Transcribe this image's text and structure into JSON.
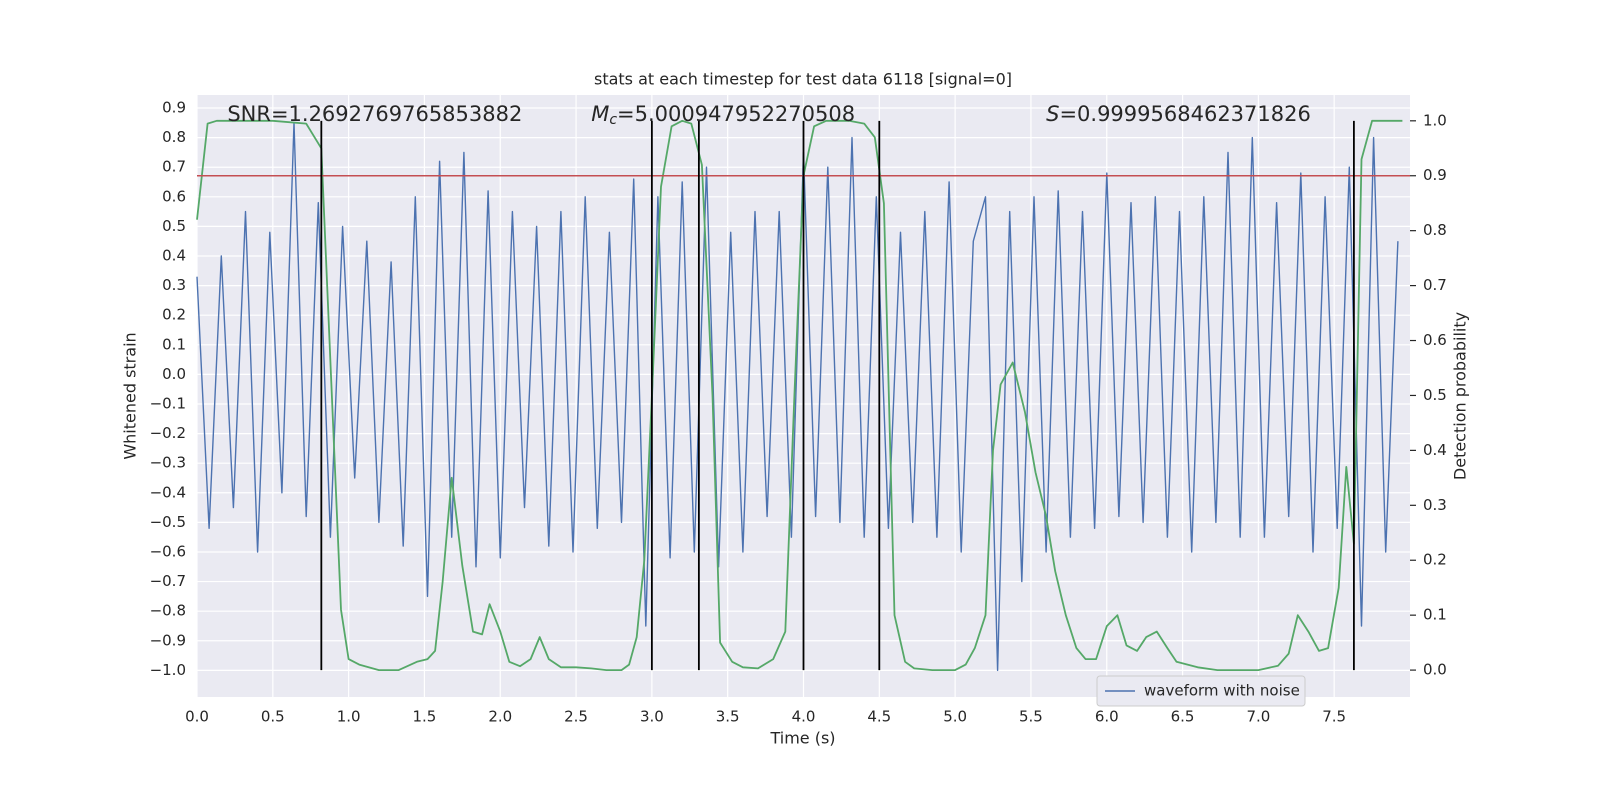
{
  "chart_data": {
    "type": "line",
    "title": "stats at each timestep for test data 6118 [signal=0]",
    "xlabel": "Time (s)",
    "ylabel": "Whitened strain",
    "y2label": "Detection probability",
    "annotations": [
      {
        "text": "SNR=1.2692769765853882",
        "x": 0.2
      },
      {
        "symbol": "M",
        "subscript": "c",
        "text": "=5.000947952270508",
        "x": 2.6
      },
      {
        "symbol": "S",
        "text": "=0.9999568462371826",
        "x": 5.6
      }
    ],
    "xlim": [
      0,
      8
    ],
    "xticks": [
      {
        "value": 0,
        "label": "0.0"
      },
      {
        "value": 0.5,
        "label": "0.5"
      },
      {
        "value": 1,
        "label": "1.0"
      },
      {
        "value": 1.5,
        "label": "1.5"
      },
      {
        "value": 2,
        "label": "2.0"
      },
      {
        "value": 2.5,
        "label": "2.5"
      },
      {
        "value": 3,
        "label": "3.0"
      },
      {
        "value": 3.5,
        "label": "3.5"
      },
      {
        "value": 4,
        "label": "4.0"
      },
      {
        "value": 4.5,
        "label": "4.5"
      },
      {
        "value": 5,
        "label": "5.0"
      },
      {
        "value": 5.5,
        "label": "5.5"
      },
      {
        "value": 6,
        "label": "6.0"
      },
      {
        "value": 6.5,
        "label": "6.5"
      },
      {
        "value": 7,
        "label": "7.0"
      },
      {
        "value": 7.5,
        "label": "7.5"
      }
    ],
    "ylim": [
      -1.09,
      0.944
    ],
    "yticks": [
      {
        "value": -1.0,
        "label": "−1.0"
      },
      {
        "value": -0.9,
        "label": "−0.9"
      },
      {
        "value": -0.8,
        "label": "−0.8"
      },
      {
        "value": -0.7,
        "label": "−0.7"
      },
      {
        "value": -0.6,
        "label": "−0.6"
      },
      {
        "value": -0.5,
        "label": "−0.5"
      },
      {
        "value": -0.4,
        "label": "−0.4"
      },
      {
        "value": -0.3,
        "label": "−0.3"
      },
      {
        "value": -0.2,
        "label": "−0.2"
      },
      {
        "value": -0.1,
        "label": "−0.1"
      },
      {
        "value": 0,
        "label": "0.0"
      },
      {
        "value": 0.1,
        "label": "0.1"
      },
      {
        "value": 0.2,
        "label": "0.2"
      },
      {
        "value": 0.3,
        "label": "0.3"
      },
      {
        "value": 0.4,
        "label": "0.4"
      },
      {
        "value": 0.5,
        "label": "0.5"
      },
      {
        "value": 0.6,
        "label": "0.6"
      },
      {
        "value": 0.7,
        "label": "0.7"
      },
      {
        "value": 0.8,
        "label": "0.8"
      },
      {
        "value": 0.9,
        "label": "0.9"
      }
    ],
    "y2lim": [
      -0.049,
      1.047
    ],
    "y2ticks": [
      {
        "value": 0,
        "label": "0.0"
      },
      {
        "value": 0.1,
        "label": "0.1"
      },
      {
        "value": 0.2,
        "label": "0.2"
      },
      {
        "value": 0.3,
        "label": "0.3"
      },
      {
        "value": 0.4,
        "label": "0.4"
      },
      {
        "value": 0.5,
        "label": "0.5"
      },
      {
        "value": 0.6,
        "label": "0.6"
      },
      {
        "value": 0.7,
        "label": "0.7"
      },
      {
        "value": 0.8,
        "label": "0.8"
      },
      {
        "value": 0.9,
        "label": "0.9"
      },
      {
        "value": 1,
        "label": "1.0"
      }
    ],
    "grid": true,
    "legend": "lower right",
    "series": [
      {
        "name": "waveform with noise",
        "color": "#4c72b0",
        "x": [
          0,
          0.08,
          0.16,
          0.24,
          0.32,
          0.4,
          0.48,
          0.56,
          0.64,
          0.72,
          0.8,
          0.88,
          0.96,
          1.04,
          1.12,
          1.2,
          1.28,
          1.36,
          1.44,
          1.52,
          1.6,
          1.68,
          1.76,
          1.84,
          1.92,
          2,
          2.08,
          2.16,
          2.24,
          2.32,
          2.4,
          2.48,
          2.56,
          2.64,
          2.72,
          2.8,
          2.88,
          2.96,
          3.04,
          3.12,
          3.2,
          3.28,
          3.36,
          3.44,
          3.52,
          3.6,
          3.68,
          3.76,
          3.84,
          3.92,
          4,
          4.08,
          4.16,
          4.24,
          4.32,
          4.4,
          4.48,
          4.56,
          4.64,
          4.72,
          4.8,
          4.88,
          4.96,
          5.04,
          5.12,
          5.2,
          5.28,
          5.36,
          5.44,
          5.52,
          5.6,
          5.68,
          5.76,
          5.84,
          5.92,
          6,
          6.08,
          6.16,
          6.24,
          6.32,
          6.4,
          6.48,
          6.56,
          6.64,
          6.72,
          6.8,
          6.88,
          6.96,
          7.04,
          7.12,
          7.2,
          7.28,
          7.36,
          7.44,
          7.52,
          7.6,
          7.68,
          7.76,
          7.84,
          7.92
        ],
        "values": [
          0.33,
          -0.52,
          0.4,
          -0.45,
          0.55,
          -0.6,
          0.48,
          -0.4,
          0.85,
          -0.48,
          0.58,
          -0.55,
          0.5,
          -0.35,
          0.45,
          -0.5,
          0.38,
          -0.58,
          0.6,
          -0.75,
          0.72,
          -0.55,
          0.75,
          -0.65,
          0.62,
          -0.62,
          0.55,
          -0.45,
          0.5,
          -0.58,
          0.55,
          -0.6,
          0.6,
          -0.52,
          0.48,
          -0.5,
          0.66,
          -0.85,
          0.6,
          -0.62,
          0.65,
          -0.6,
          0.7,
          -0.65,
          0.48,
          -0.6,
          0.55,
          -0.48,
          0.55,
          -0.55,
          0.75,
          -0.48,
          0.7,
          -0.5,
          0.8,
          -0.55,
          0.6,
          -0.52,
          0.48,
          -0.5,
          0.55,
          -0.55,
          0.65,
          -0.6,
          0.45,
          0.6,
          -1.0,
          0.55,
          -0.7,
          0.6,
          -0.6,
          0.62,
          -0.55,
          0.55,
          -0.52,
          0.68,
          -0.48,
          0.58,
          -0.5,
          0.6,
          -0.55,
          0.55,
          -0.6,
          0.6,
          -0.5,
          0.75,
          -0.55,
          0.8,
          -0.55,
          0.58,
          -0.48,
          0.68,
          -0.6,
          0.6,
          -0.52,
          0.7,
          -0.85,
          0.8,
          -0.6,
          0.45
        ]
      },
      {
        "color": "#55a868",
        "axis": "y2",
        "x": [
          0,
          0.07,
          0.13,
          0.5,
          0.72,
          0.82,
          0.95,
          1,
          1.07,
          1.2,
          1.33,
          1.45,
          1.52,
          1.57,
          1.62,
          1.68,
          1.75,
          1.82,
          1.88,
          1.93,
          2,
          2.06,
          2.13,
          2.2,
          2.26,
          2.32,
          2.4,
          2.5,
          2.6,
          2.7,
          2.8,
          2.85,
          2.9,
          2.95,
          3,
          3.06,
          3.13,
          3.2,
          3.26,
          3.33,
          3.4,
          3.45,
          3.53,
          3.6,
          3.7,
          3.8,
          3.88,
          3.94,
          4,
          4.07,
          4.15,
          4.3,
          4.4,
          4.47,
          4.53,
          4.6,
          4.67,
          4.73,
          4.85,
          5,
          5.07,
          5.13,
          5.2,
          5.25,
          5.3,
          5.38,
          5.46,
          5.53,
          5.6,
          5.66,
          5.73,
          5.8,
          5.86,
          5.93,
          6,
          6.07,
          6.13,
          6.2,
          6.26,
          6.33,
          6.4,
          6.46,
          6.6,
          6.73,
          6.86,
          7,
          7.13,
          7.2,
          7.26,
          7.33,
          7.4,
          7.46,
          7.53,
          7.58,
          7.63,
          7.68,
          7.75,
          7.95
        ],
        "values": [
          0.82,
          0.995,
          1,
          1,
          0.995,
          0.95,
          0.11,
          0.02,
          0.01,
          0,
          0,
          0.015,
          0.02,
          0.035,
          0.16,
          0.35,
          0.19,
          0.07,
          0.065,
          0.12,
          0.07,
          0.015,
          0.007,
          0.02,
          0.06,
          0.02,
          0.005,
          0.005,
          0.003,
          0,
          0,
          0.01,
          0.06,
          0.2,
          0.5,
          0.88,
          0.99,
          1,
          0.995,
          0.92,
          0.5,
          0.05,
          0.015,
          0.005,
          0.003,
          0.02,
          0.07,
          0.5,
          0.9,
          0.99,
          1,
          1,
          0.995,
          0.97,
          0.85,
          0.1,
          0.015,
          0.003,
          0,
          0,
          0.01,
          0.04,
          0.1,
          0.4,
          0.52,
          0.56,
          0.47,
          0.36,
          0.28,
          0.18,
          0.1,
          0.04,
          0.02,
          0.02,
          0.08,
          0.1,
          0.045,
          0.035,
          0.06,
          0.07,
          0.04,
          0.015,
          0.005,
          0,
          0,
          0,
          0.008,
          0.03,
          0.1,
          0.07,
          0.035,
          0.04,
          0.15,
          0.37,
          0.23,
          0.93,
          1,
          1
        ]
      }
    ],
    "hlines": [
      {
        "y2": 0.9,
        "color": "#c44e52"
      }
    ],
    "vlines": {
      "x": [
        0.82,
        3.0,
        3.31,
        4.0,
        4.5,
        7.63
      ],
      "color": "#000000"
    }
  }
}
